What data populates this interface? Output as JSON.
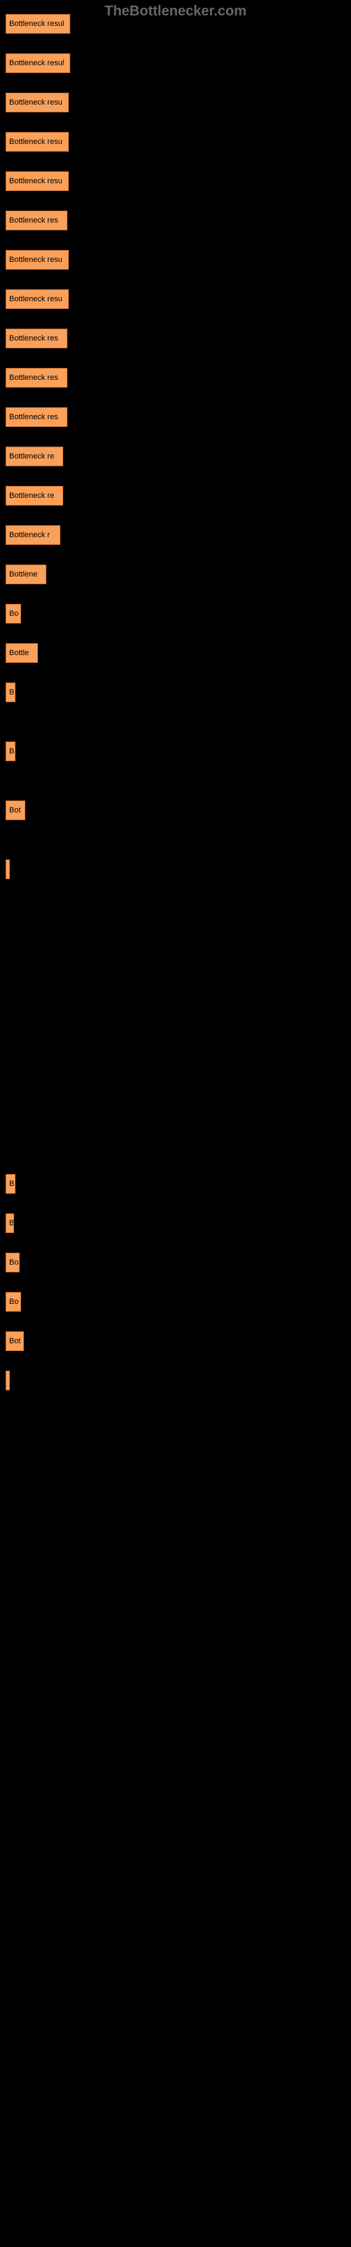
{
  "watermark": "TheBottlenecker.com",
  "bar_color": "#f9a05a",
  "bar_border_color": "#c97030",
  "background_color": "#000000",
  "chart": {
    "type": "bar",
    "max_width": 92,
    "bars": [
      {
        "label": "Bottleneck resul",
        "width": 92,
        "gap": 28
      },
      {
        "label": "Bottleneck resul",
        "width": 92,
        "gap": 28
      },
      {
        "label": "Bottleneck resu",
        "width": 90,
        "gap": 28
      },
      {
        "label": "Bottleneck resu",
        "width": 90,
        "gap": 28
      },
      {
        "label": "Bottleneck resu",
        "width": 90,
        "gap": 28
      },
      {
        "label": "Bottleneck res",
        "width": 88,
        "gap": 28
      },
      {
        "label": "Bottleneck resu",
        "width": 90,
        "gap": 28
      },
      {
        "label": "Bottleneck resu",
        "width": 90,
        "gap": 28
      },
      {
        "label": "Bottleneck res",
        "width": 88,
        "gap": 28
      },
      {
        "label": "Bottleneck res",
        "width": 88,
        "gap": 28
      },
      {
        "label": "Bottleneck res",
        "width": 88,
        "gap": 28
      },
      {
        "label": "Bottleneck re",
        "width": 82,
        "gap": 28
      },
      {
        "label": "Bottleneck re",
        "width": 82,
        "gap": 28
      },
      {
        "label": "Bottleneck r",
        "width": 78,
        "gap": 28
      },
      {
        "label": "Bottlene",
        "width": 58,
        "gap": 28
      },
      {
        "label": "Bo",
        "width": 22,
        "gap": 28
      },
      {
        "label": "Bottle",
        "width": 46,
        "gap": 28
      },
      {
        "label": "B",
        "width": 14,
        "gap": 56
      },
      {
        "label": "B",
        "width": 14,
        "gap": 56
      },
      {
        "label": "Bot",
        "width": 28,
        "gap": 56
      },
      {
        "label": "",
        "width": 6,
        "gap": 420
      },
      {
        "label": "B",
        "width": 14,
        "gap": 28
      },
      {
        "label": "B",
        "width": 12,
        "gap": 28
      },
      {
        "label": "Bo",
        "width": 20,
        "gap": 28
      },
      {
        "label": "Bo",
        "width": 22,
        "gap": 28
      },
      {
        "label": "Bot",
        "width": 26,
        "gap": 28
      },
      {
        "label": "",
        "width": 6,
        "gap": 28
      }
    ]
  }
}
